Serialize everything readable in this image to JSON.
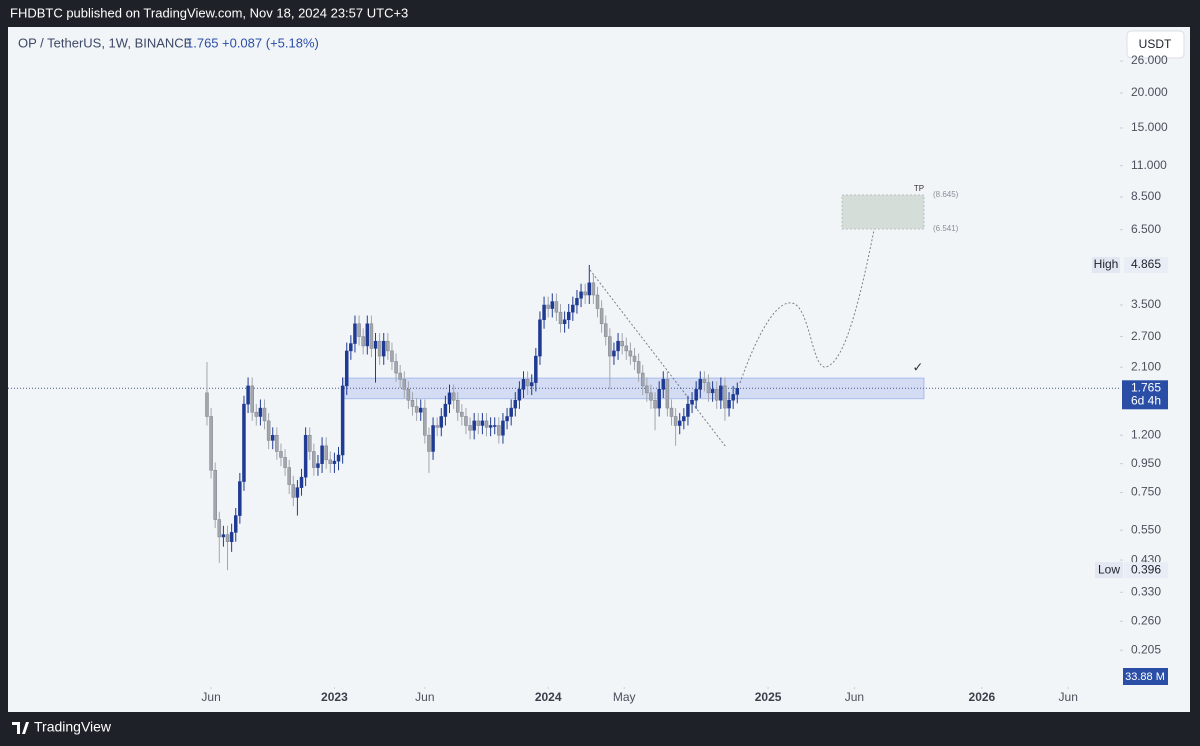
{
  "top_bar": "FHDBTC published on TradingView.com, Nov 18, 2024 23:57 UTC+3",
  "header": {
    "symbol": "OP / TetherUS, 1W, BINANCE",
    "change": "+0.087 (+5.18%)",
    "currency_button": "USDT"
  },
  "footer": {
    "brand": "TradingView"
  },
  "chart_data": {
    "type": "candlestick",
    "log_scale": true,
    "grid": false,
    "up_color": "#1f3a93",
    "down_color": "#a3a6ad",
    "ylim": [
      0.154,
      34.4
    ],
    "yticks": [
      {
        "value": 26,
        "label": "26.000"
      },
      {
        "value": 20,
        "label": "20.000"
      },
      {
        "value": 15,
        "label": "15.000"
      },
      {
        "value": 11,
        "label": "11.000"
      },
      {
        "value": 8.5,
        "label": "8.500"
      },
      {
        "value": 6.5,
        "label": "6.500"
      },
      {
        "value": 3.5,
        "label": "3.500"
      },
      {
        "value": 2.7,
        "label": "2.700"
      },
      {
        "value": 2.1,
        "label": "2.100"
      },
      {
        "value": 1.2,
        "label": "1.200"
      },
      {
        "value": 0.95,
        "label": "0.950"
      },
      {
        "value": 0.75,
        "label": "0.750"
      },
      {
        "value": 0.55,
        "label": "0.550"
      },
      {
        "value": 0.43,
        "label": "0.430"
      },
      {
        "value": 0.33,
        "label": "0.330"
      },
      {
        "value": 0.26,
        "label": "0.260"
      },
      {
        "value": 0.205,
        "label": "0.205"
      }
    ],
    "xlim": [
      -48.4,
      222.1
    ],
    "xticks": [
      {
        "value": 1,
        "label": "Jun"
      },
      {
        "value": 31,
        "label": "2023"
      },
      {
        "value": 53,
        "label": "Jun"
      },
      {
        "value": 83,
        "label": "2024"
      },
      {
        "value": 101.5,
        "label": "May"
      },
      {
        "value": 136.5,
        "label": "2025"
      },
      {
        "value": 157.5,
        "label": "Jun"
      },
      {
        "value": 188.5,
        "label": "2026"
      },
      {
        "value": 209.5,
        "label": "Jun"
      }
    ],
    "open": [
      1.7,
      1.4,
      0.9,
      0.6,
      0.52,
      0.53,
      0.5,
      0.54,
      0.62,
      0.82,
      1.55,
      1.8,
      1.45,
      1.4,
      1.5,
      1.35,
      1.15,
      1.2,
      1.05,
      1.0,
      0.92,
      0.8,
      0.72,
      0.78,
      0.85,
      1.2,
      1.05,
      0.92,
      0.95,
      1.1,
      0.98,
      0.95,
      0.97,
      1.02,
      1.8,
      2.4,
      2.55,
      3.0,
      2.7,
      2.5,
      3.0,
      2.45,
      2.6,
      2.3,
      2.6,
      2.4,
      2.2,
      2.0,
      1.9,
      1.75,
      1.6,
      1.52,
      1.45,
      1.5,
      1.2,
      1.05,
      1.3,
      1.28,
      1.4,
      1.55,
      1.7,
      1.6,
      1.45,
      1.4,
      1.3,
      1.25,
      1.35,
      1.3,
      1.35,
      1.28,
      1.3,
      1.3,
      1.2,
      1.35,
      1.4,
      1.5,
      1.6,
      1.75,
      1.9,
      1.8,
      1.85,
      2.3,
      3.1,
      3.5,
      3.4,
      3.6,
      3.3,
      3.0,
      3.1,
      3.3,
      3.5,
      3.7,
      3.9,
      3.8,
      4.2,
      3.8,
      3.4,
      3.0,
      2.7,
      2.3,
      2.4,
      2.6,
      2.5,
      2.4,
      2.3,
      2.2,
      2.0,
      1.8,
      1.7,
      1.6,
      1.5,
      1.75,
      1.9,
      1.5,
      1.4,
      1.3,
      1.35,
      1.4,
      1.55,
      1.6,
      1.75,
      1.9,
      1.85,
      1.7,
      1.75,
      1.6,
      1.8,
      1.5,
      1.6,
      1.678
    ],
    "high": [
      2.19,
      1.5,
      0.96,
      0.64,
      0.57,
      0.57,
      0.58,
      0.66,
      0.88,
      1.66,
      1.93,
      1.93,
      1.55,
      1.61,
      1.61,
      1.44,
      1.28,
      1.28,
      1.12,
      1.07,
      0.98,
      0.86,
      0.83,
      0.91,
      1.28,
      1.28,
      1.12,
      1.02,
      1.18,
      1.18,
      1.05,
      1.04,
      1.09,
      1.93,
      2.57,
      2.73,
      3.21,
      3.21,
      2.89,
      3.21,
      3.21,
      2.78,
      2.78,
      2.78,
      2.78,
      2.57,
      2.35,
      2.14,
      2.03,
      1.87,
      1.71,
      1.63,
      1.61,
      1.61,
      1.28,
      1.39,
      1.39,
      1.5,
      1.66,
      1.82,
      1.82,
      1.71,
      1.55,
      1.5,
      1.39,
      1.44,
      1.44,
      1.44,
      1.44,
      1.39,
      1.39,
      1.39,
      1.44,
      1.5,
      1.61,
      1.71,
      1.87,
      2.03,
      2.03,
      1.98,
      2.46,
      3.32,
      3.75,
      3.75,
      3.85,
      3.85,
      3.53,
      3.32,
      3.53,
      3.75,
      3.96,
      4.17,
      4.17,
      4.865,
      4.49,
      4.07,
      3.64,
      3.21,
      2.89,
      2.57,
      2.78,
      2.78,
      2.68,
      2.57,
      2.46,
      2.35,
      2.14,
      1.93,
      1.82,
      1.71,
      1.87,
      2.03,
      2.03,
      1.61,
      1.5,
      1.44,
      1.5,
      1.66,
      1.71,
      1.87,
      2.03,
      2.03,
      1.98,
      1.87,
      1.87,
      1.93,
      1.93,
      1.71,
      1.8,
      1.85
    ],
    "low": [
      1.3,
      0.84,
      0.56,
      0.42,
      0.48,
      0.396,
      0.46,
      0.5,
      0.58,
      0.76,
      1.44,
      1.35,
      1.3,
      1.3,
      1.26,
      1.07,
      1.07,
      0.98,
      0.93,
      0.86,
      0.74,
      0.67,
      0.62,
      0.73,
      0.79,
      0.98,
      0.86,
      0.86,
      0.88,
      0.91,
      0.88,
      0.88,
      0.9,
      0.95,
      1.67,
      2.23,
      2.37,
      2.51,
      2.33,
      2.33,
      2.28,
      1.85,
      2.14,
      2.14,
      2.23,
      2.05,
      1.86,
      1.77,
      1.63,
      1.49,
      1.41,
      1.35,
      1.35,
      1.12,
      0.88,
      0.98,
      1.19,
      1.19,
      1.3,
      1.44,
      1.49,
      1.35,
      1.3,
      1.21,
      1.16,
      1.16,
      1.21,
      1.21,
      1.19,
      1.19,
      1.21,
      1.12,
      1.12,
      1.26,
      1.3,
      1.4,
      1.49,
      1.63,
      1.67,
      1.67,
      1.72,
      2.14,
      2.88,
      3.16,
      3.16,
      3.07,
      2.79,
      2.79,
      2.88,
      3.07,
      3.26,
      3.44,
      3.53,
      3.53,
      3.53,
      3.16,
      2.79,
      2.51,
      1.75,
      2.14,
      2.23,
      2.33,
      2.23,
      2.14,
      2.05,
      1.86,
      1.67,
      1.58,
      1.49,
      1.25,
      1.4,
      1.63,
      1.4,
      1.3,
      1.1,
      1.21,
      1.26,
      1.3,
      1.44,
      1.49,
      1.63,
      1.72,
      1.58,
      1.58,
      1.49,
      1.49,
      1.35,
      1.4,
      1.49,
      1.56
    ],
    "close": [
      1.4,
      0.9,
      0.6,
      0.52,
      0.53,
      0.5,
      0.54,
      0.62,
      0.82,
      1.55,
      1.8,
      1.45,
      1.4,
      1.5,
      1.35,
      1.15,
      1.2,
      1.05,
      1.0,
      0.92,
      0.8,
      0.72,
      0.78,
      0.85,
      1.2,
      1.05,
      0.92,
      0.95,
      1.1,
      0.98,
      0.95,
      0.97,
      1.02,
      1.8,
      2.4,
      2.55,
      3.0,
      2.7,
      2.5,
      3.0,
      2.45,
      2.6,
      2.3,
      2.6,
      2.4,
      2.2,
      2.0,
      1.9,
      1.75,
      1.6,
      1.52,
      1.45,
      1.5,
      1.2,
      1.05,
      1.3,
      1.28,
      1.4,
      1.55,
      1.7,
      1.6,
      1.45,
      1.4,
      1.3,
      1.25,
      1.35,
      1.3,
      1.35,
      1.28,
      1.3,
      1.3,
      1.2,
      1.35,
      1.4,
      1.5,
      1.6,
      1.75,
      1.9,
      1.8,
      1.85,
      2.3,
      3.1,
      3.5,
      3.4,
      3.6,
      3.3,
      3.0,
      3.1,
      3.3,
      3.5,
      3.7,
      3.9,
      3.8,
      4.2,
      3.8,
      3.4,
      3.0,
      2.7,
      2.3,
      2.4,
      2.6,
      2.5,
      2.4,
      2.3,
      2.2,
      2.0,
      1.8,
      1.7,
      1.6,
      1.5,
      1.75,
      1.9,
      1.5,
      1.4,
      1.3,
      1.35,
      1.4,
      1.55,
      1.6,
      1.75,
      1.9,
      1.85,
      1.7,
      1.75,
      1.6,
      1.8,
      1.5,
      1.6,
      1.678,
      1.765
    ],
    "last_price": 1.765,
    "countdown": "6d 4h",
    "high_marker": {
      "label": "High",
      "value": 4.865
    },
    "low_marker": {
      "label": "Low",
      "value": 0.396
    },
    "volume_label": "33.88 M",
    "zone": {
      "low": 1.62,
      "high": 1.92
    },
    "target": {
      "label": "TP",
      "high": {
        "value": 8.645,
        "label": "(8.645)"
      },
      "low": {
        "value": 6.541,
        "label": "(6.541)"
      }
    },
    "check": "✓"
  }
}
